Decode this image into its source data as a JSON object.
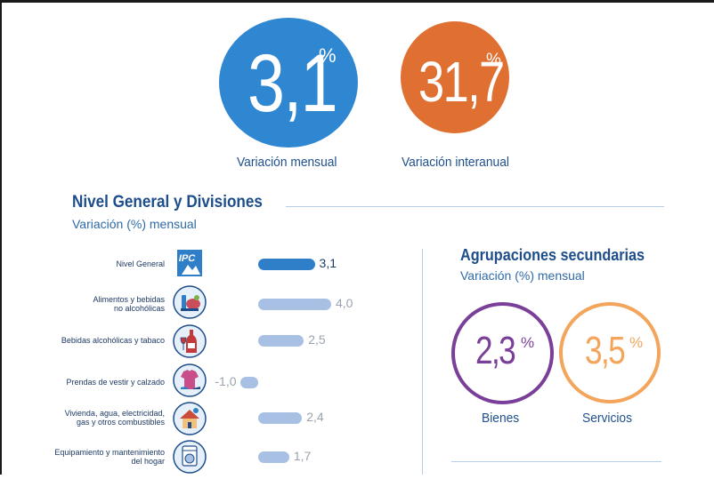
{
  "colors": {
    "blue": "#2f86d1",
    "orange": "#e06f32",
    "bar_primary": "#2f7fc8",
    "bar_light": "#a7c0e3",
    "purple": "#7a3f98",
    "light_orange": "#f2a55b",
    "navy": "#1d4d8a"
  },
  "headline": {
    "monthly": {
      "value": "3,1",
      "unit": "%",
      "label": "Variación mensual"
    },
    "yearly": {
      "value": "31,7",
      "unit": "%",
      "label": "Variación interanual"
    }
  },
  "divisions": {
    "title": "Nivel General y Divisiones",
    "subtitle": "Variación (%) mensual"
  },
  "groups": {
    "title": "Agrupaciones secundarias",
    "subtitle": "Variación (%) mensual",
    "items": [
      {
        "value": "2,3",
        "unit": "%",
        "label": "Bienes"
      },
      {
        "value": "3,5",
        "unit": "%",
        "label": "Servicios"
      }
    ]
  },
  "icons": [
    "ipc-logo-icon",
    "food-basket-icon",
    "wine-bottle-icon",
    "clothing-icon",
    "house-icon",
    "washing-machine-icon"
  ],
  "chart_data": {
    "type": "bar",
    "orientation": "horizontal",
    "title": "Nivel General y Divisiones",
    "subtitle": "Variación (%) mensual",
    "categories": [
      [
        "Nivel General"
      ],
      [
        "Alimentos y bebidas",
        "no alcohólicas"
      ],
      [
        "Bebidas alcohólicas y tabaco"
      ],
      [
        "Prendas de vestir y calzado"
      ],
      [
        "Vivienda, agua, electricidad,",
        "gas y otros combustibles"
      ],
      [
        "Equipamiento y mantenimiento",
        "del hogar"
      ]
    ],
    "values": [
      3.1,
      4.0,
      2.5,
      -1.0,
      2.4,
      1.7
    ],
    "labels": [
      "3,1",
      "4,0",
      "2,5",
      "-1,0",
      "2,4",
      "1,7"
    ],
    "highlight_index": 0
  }
}
